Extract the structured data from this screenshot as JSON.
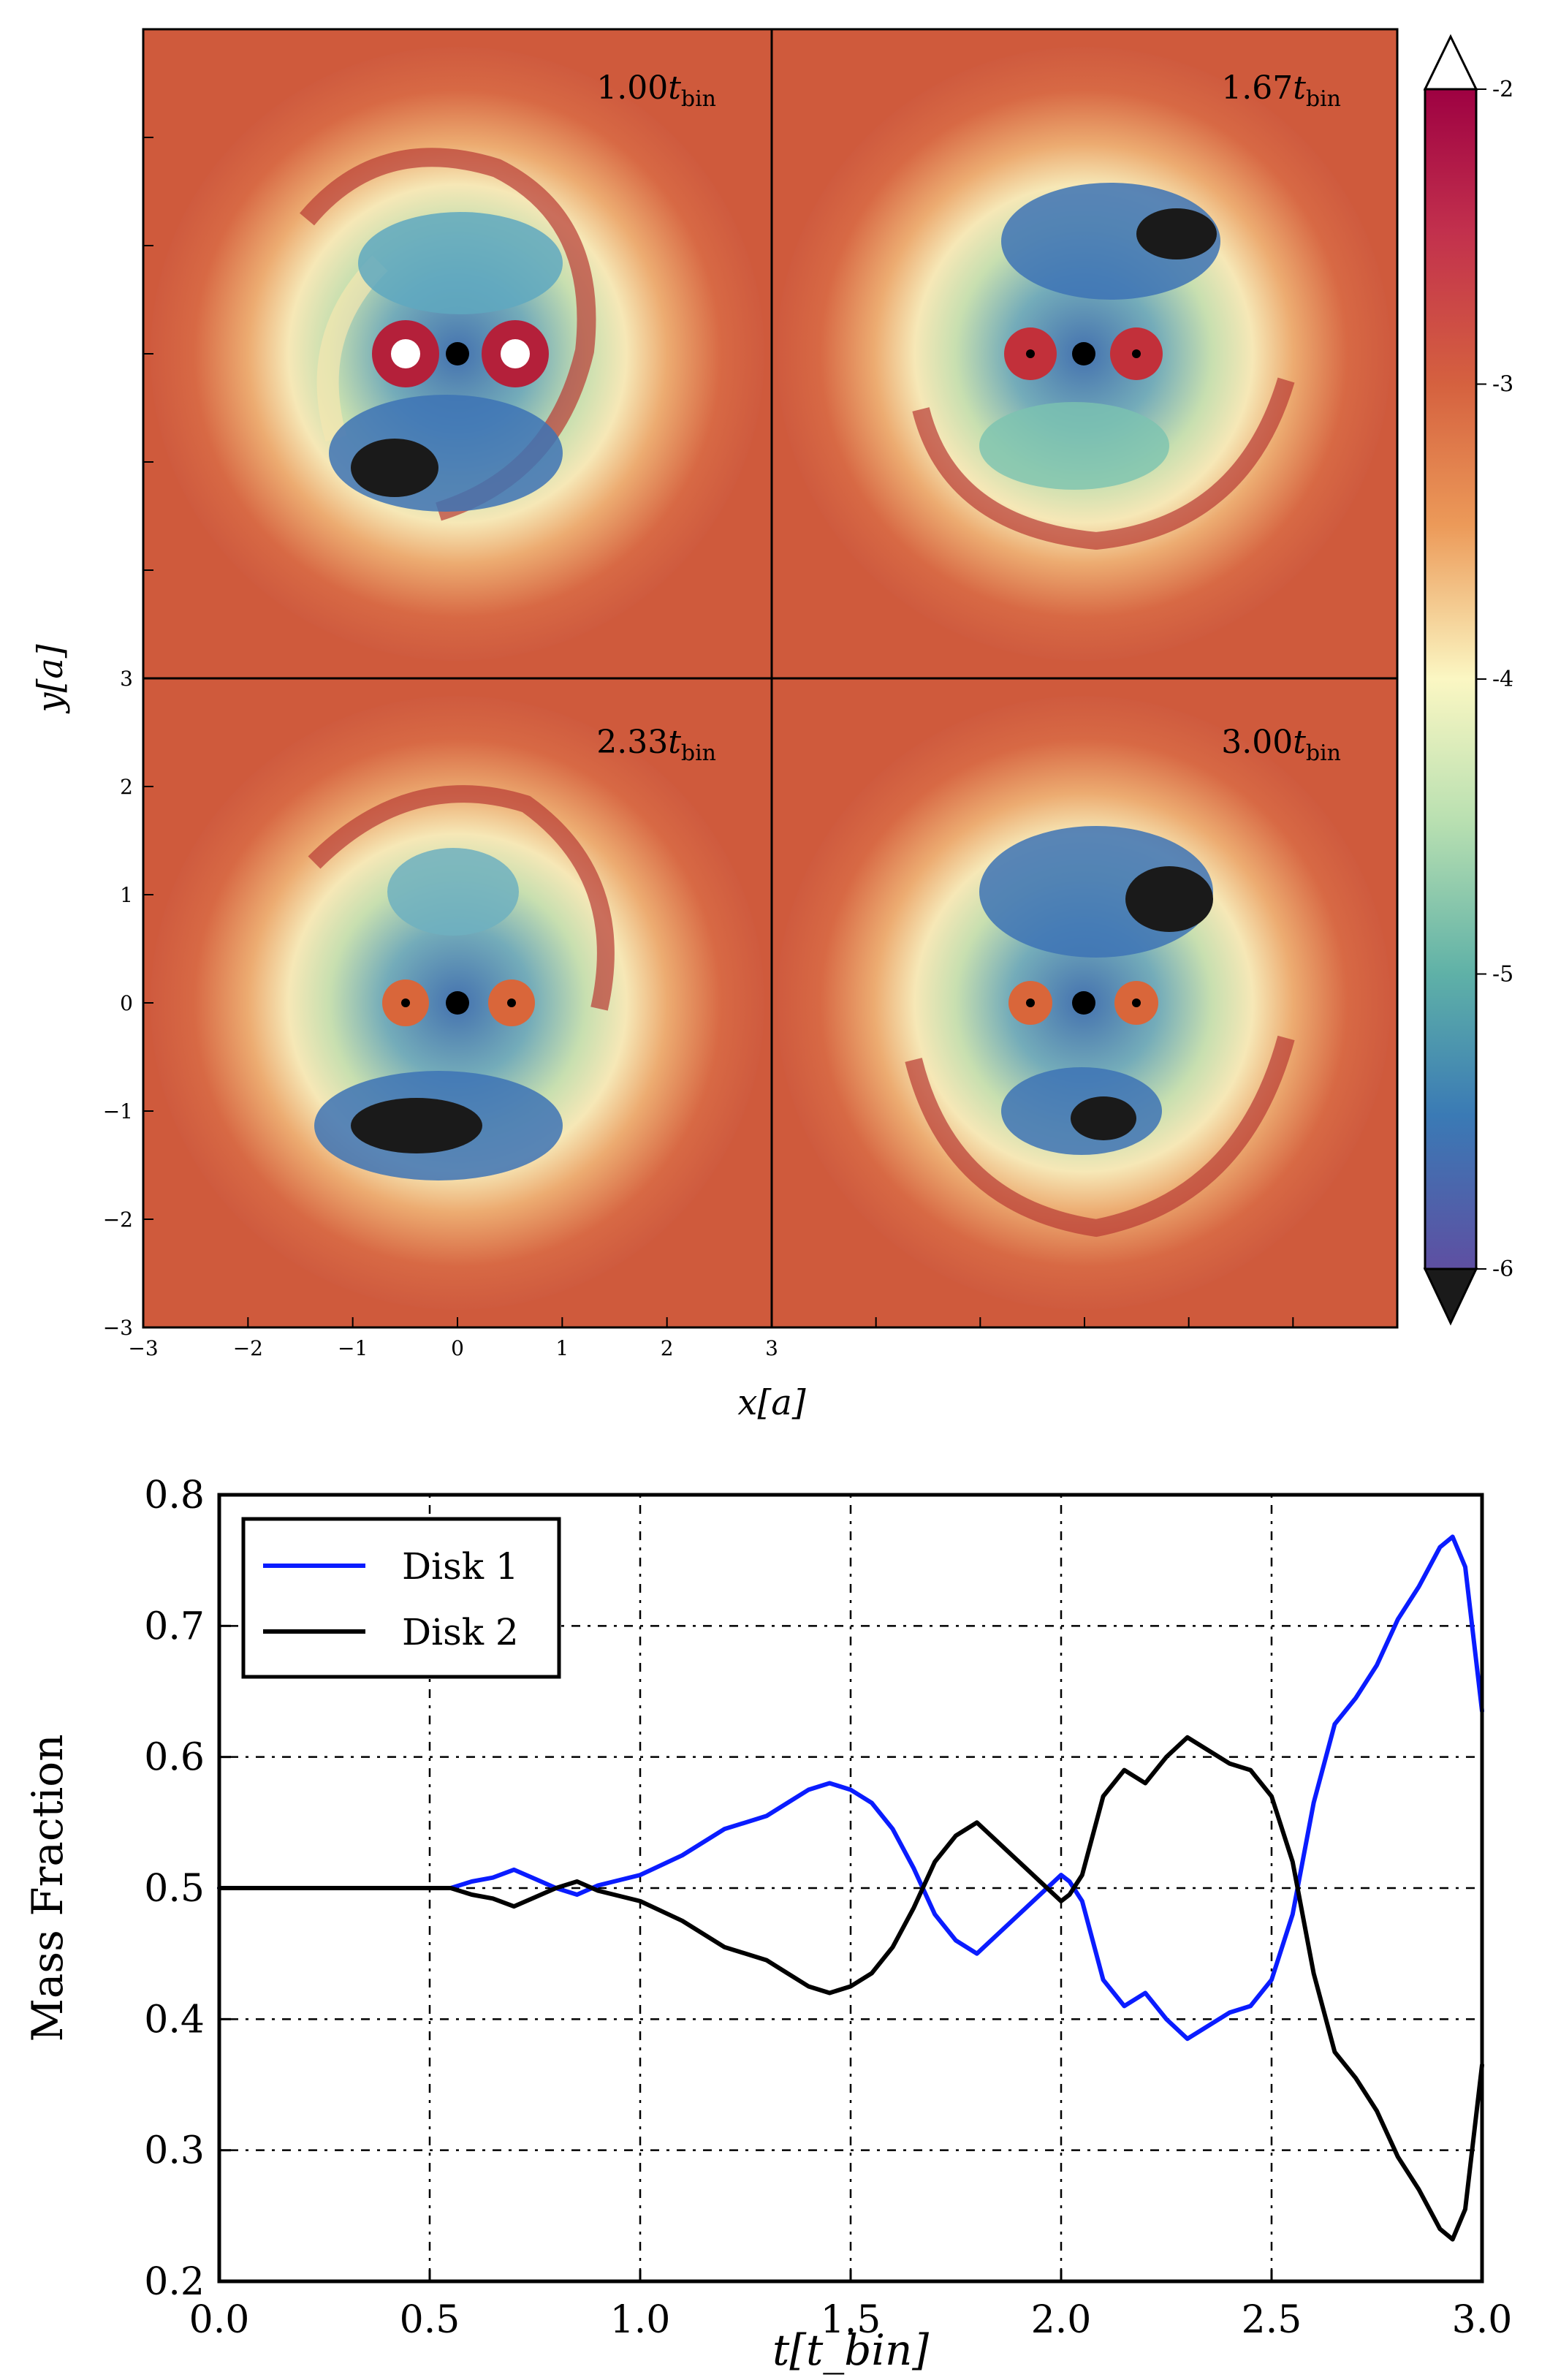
{
  "panels": [
    {
      "label": "1.00",
      "subscript": "bin",
      "var": "t"
    },
    {
      "label": "1.67",
      "subscript": "bin",
      "var": "t"
    },
    {
      "label": "2.33",
      "subscript": "bin",
      "var": "t"
    },
    {
      "label": "3.00",
      "subscript": "bin",
      "var": "t"
    }
  ],
  "colors": {
    "blue_line": "#0a1cff",
    "black_line": "#000000",
    "map_red": "#c0392b",
    "map_orange": "#d9663a",
    "map_cream": "#f6e7b4",
    "map_teal": "#7cc3b0",
    "map_blue": "#3b6fb1",
    "map_dark": "#1a1a1a"
  },
  "chart_data": [
    {
      "type": "heatmap",
      "title": "",
      "xlabel": "x[a]",
      "ylabel": "y[a]",
      "xlim": [
        -3,
        3
      ],
      "ylim": [
        -3,
        3
      ],
      "x_ticks": [
        "−3",
        "−2",
        "−1",
        "0",
        "1",
        "2",
        "3"
      ],
      "y_ticks": [
        "3",
        "2",
        "1",
        "0",
        "−1",
        "−2",
        "−3"
      ],
      "colorbar": {
        "ticks": [
          "-2",
          "-3",
          "-4",
          "-5",
          "-6"
        ],
        "range": [
          -6,
          -2
        ],
        "extend": "both"
      },
      "panels": [
        "1.00 t_bin",
        "1.67 t_bin",
        "2.33 t_bin",
        "3.00 t_bin"
      ]
    },
    {
      "type": "line",
      "title": "",
      "xlabel": "t[t_bin]",
      "ylabel": "Mass Fraction",
      "xlim": [
        0.0,
        3.0
      ],
      "ylim": [
        0.2,
        0.8
      ],
      "x_ticks": [
        "0.0",
        "0.5",
        "1.0",
        "1.5",
        "2.0",
        "2.5",
        "3.0"
      ],
      "y_ticks": [
        "0.8",
        "0.7",
        "0.6",
        "0.5",
        "0.4",
        "0.3",
        "0.2"
      ],
      "legend": "top-left",
      "grid": true,
      "series": [
        {
          "name": "Disk 1",
          "color": "#0a1cff",
          "x": [
            0.0,
            0.2,
            0.4,
            0.55,
            0.6,
            0.65,
            0.7,
            0.75,
            0.8,
            0.85,
            0.9,
            1.0,
            1.1,
            1.2,
            1.3,
            1.35,
            1.4,
            1.45,
            1.5,
            1.55,
            1.6,
            1.65,
            1.7,
            1.75,
            1.8,
            1.85,
            1.9,
            1.95,
            2.0,
            2.02,
            2.05,
            2.1,
            2.15,
            2.2,
            2.25,
            2.3,
            2.35,
            2.4,
            2.45,
            2.5,
            2.55,
            2.6,
            2.65,
            2.7,
            2.75,
            2.8,
            2.85,
            2.9,
            2.93,
            2.96,
            3.0
          ],
          "values": [
            0.5,
            0.5,
            0.5,
            0.5,
            0.505,
            0.508,
            0.514,
            0.507,
            0.5,
            0.495,
            0.502,
            0.51,
            0.525,
            0.545,
            0.555,
            0.565,
            0.575,
            0.58,
            0.575,
            0.565,
            0.545,
            0.515,
            0.48,
            0.46,
            0.45,
            0.465,
            0.48,
            0.495,
            0.51,
            0.505,
            0.49,
            0.43,
            0.41,
            0.42,
            0.4,
            0.385,
            0.395,
            0.405,
            0.41,
            0.43,
            0.48,
            0.565,
            0.625,
            0.645,
            0.67,
            0.705,
            0.73,
            0.76,
            0.768,
            0.745,
            0.635
          ]
        },
        {
          "name": "Disk 2",
          "color": "#000000",
          "x": [
            0.0,
            0.2,
            0.4,
            0.55,
            0.6,
            0.65,
            0.7,
            0.75,
            0.8,
            0.85,
            0.9,
            1.0,
            1.1,
            1.2,
            1.3,
            1.35,
            1.4,
            1.45,
            1.5,
            1.55,
            1.6,
            1.65,
            1.7,
            1.75,
            1.8,
            1.85,
            1.9,
            1.95,
            2.0,
            2.02,
            2.05,
            2.1,
            2.15,
            2.2,
            2.25,
            2.3,
            2.35,
            2.4,
            2.45,
            2.5,
            2.55,
            2.6,
            2.65,
            2.7,
            2.75,
            2.8,
            2.85,
            2.9,
            2.93,
            2.96,
            3.0
          ],
          "values": [
            0.5,
            0.5,
            0.5,
            0.5,
            0.495,
            0.492,
            0.486,
            0.493,
            0.5,
            0.505,
            0.498,
            0.49,
            0.475,
            0.455,
            0.445,
            0.435,
            0.425,
            0.42,
            0.425,
            0.435,
            0.455,
            0.485,
            0.52,
            0.54,
            0.55,
            0.535,
            0.52,
            0.505,
            0.49,
            0.495,
            0.51,
            0.57,
            0.59,
            0.58,
            0.6,
            0.615,
            0.605,
            0.595,
            0.59,
            0.57,
            0.52,
            0.435,
            0.375,
            0.355,
            0.33,
            0.295,
            0.27,
            0.24,
            0.232,
            0.255,
            0.365
          ]
        }
      ]
    }
  ],
  "legend": {
    "entries": [
      "Disk 1",
      "Disk 2"
    ]
  }
}
